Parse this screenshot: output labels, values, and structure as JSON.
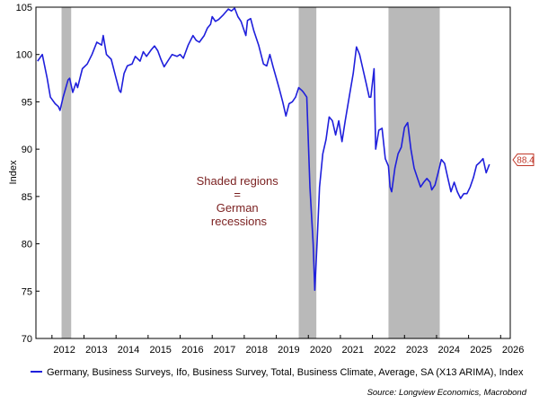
{
  "chart_data": {
    "type": "line",
    "title": "",
    "xlabel": "",
    "ylabel": "Index",
    "ylim": [
      70,
      105
    ],
    "xlim": [
      2011.5,
      2026.3
    ],
    "yticks": [
      70,
      75,
      80,
      85,
      90,
      95,
      100,
      105
    ],
    "xticks": [
      2012,
      2013,
      2014,
      2015,
      2016,
      2017,
      2018,
      2019,
      2020,
      2021,
      2022,
      2023,
      2024,
      2025,
      2026
    ],
    "grid": false,
    "recessions": [
      [
        2012.3,
        2012.6
      ],
      [
        2019.7,
        2020.25
      ],
      [
        2022.5,
        2024.1
      ]
    ],
    "annotation": [
      "Shaded regions",
      "=",
      "German",
      "recessions"
    ],
    "last_value_label": "88.4",
    "legend": "Germany, Business Surveys, Ifo, Business Survey, Total, Business Climate, Average, SA (X13 ARIMA), Index",
    "source": "Source: Longview Economics, Macrobond",
    "series_color": "#1f1fdc",
    "recession_color": "#b9b9b9",
    "series": [
      {
        "name": "Germany, Business Surveys, Ifo, Business Survey, Total, Business Climate, Average, SA (X13 ARIMA), Index",
        "points": [
          [
            2011.55,
            99.3
          ],
          [
            2011.7,
            100.0
          ],
          [
            2011.85,
            97.5
          ],
          [
            2011.95,
            95.5
          ],
          [
            2012.1,
            94.8
          ],
          [
            2012.2,
            94.5
          ],
          [
            2012.25,
            94.1
          ],
          [
            2012.35,
            95.5
          ],
          [
            2012.5,
            97.3
          ],
          [
            2012.55,
            97.5
          ],
          [
            2012.65,
            96.0
          ],
          [
            2012.75,
            97.0
          ],
          [
            2012.8,
            96.5
          ],
          [
            2012.95,
            98.5
          ],
          [
            2013.1,
            99.0
          ],
          [
            2013.25,
            100.0
          ],
          [
            2013.4,
            101.3
          ],
          [
            2013.55,
            101.0
          ],
          [
            2013.6,
            102.0
          ],
          [
            2013.7,
            100.0
          ],
          [
            2013.85,
            99.5
          ],
          [
            2014.0,
            97.5
          ],
          [
            2014.1,
            96.2
          ],
          [
            2014.15,
            96.0
          ],
          [
            2014.25,
            98.0
          ],
          [
            2014.35,
            98.8
          ],
          [
            2014.5,
            99.0
          ],
          [
            2014.6,
            99.8
          ],
          [
            2014.75,
            99.3
          ],
          [
            2014.85,
            100.3
          ],
          [
            2014.95,
            99.8
          ],
          [
            2015.1,
            100.5
          ],
          [
            2015.2,
            100.9
          ],
          [
            2015.3,
            100.4
          ],
          [
            2015.4,
            99.5
          ],
          [
            2015.5,
            98.7
          ],
          [
            2015.65,
            99.5
          ],
          [
            2015.75,
            100.0
          ],
          [
            2015.9,
            99.8
          ],
          [
            2016.0,
            100.0
          ],
          [
            2016.1,
            99.6
          ],
          [
            2016.25,
            101.0
          ],
          [
            2016.4,
            102.0
          ],
          [
            2016.5,
            101.5
          ],
          [
            2016.6,
            101.3
          ],
          [
            2016.75,
            102.0
          ],
          [
            2016.85,
            102.8
          ],
          [
            2016.95,
            103.2
          ],
          [
            2017.0,
            104.0
          ],
          [
            2017.1,
            103.5
          ],
          [
            2017.2,
            103.7
          ],
          [
            2017.35,
            104.2
          ],
          [
            2017.5,
            104.8
          ],
          [
            2017.6,
            104.6
          ],
          [
            2017.7,
            104.9
          ],
          [
            2017.8,
            104.0
          ],
          [
            2017.9,
            103.5
          ],
          [
            2018.0,
            102.5
          ],
          [
            2018.05,
            102.0
          ],
          [
            2018.1,
            103.6
          ],
          [
            2018.2,
            103.8
          ],
          [
            2018.3,
            102.5
          ],
          [
            2018.45,
            101.0
          ],
          [
            2018.6,
            99.0
          ],
          [
            2018.7,
            98.8
          ],
          [
            2018.8,
            100.0
          ],
          [
            2018.9,
            98.7
          ],
          [
            2019.0,
            97.5
          ],
          [
            2019.1,
            96.3
          ],
          [
            2019.2,
            95.0
          ],
          [
            2019.3,
            93.5
          ],
          [
            2019.4,
            94.8
          ],
          [
            2019.5,
            95.0
          ],
          [
            2019.6,
            95.5
          ],
          [
            2019.7,
            96.5
          ],
          [
            2019.8,
            96.2
          ],
          [
            2019.85,
            96.0
          ],
          [
            2019.95,
            95.5
          ],
          [
            2020.05,
            86.0
          ],
          [
            2020.15,
            80.0
          ],
          [
            2020.2,
            75.1
          ],
          [
            2020.27,
            80.0
          ],
          [
            2020.35,
            86.0
          ],
          [
            2020.45,
            89.5
          ],
          [
            2020.55,
            91.0
          ],
          [
            2020.65,
            93.4
          ],
          [
            2020.75,
            93.0
          ],
          [
            2020.85,
            91.5
          ],
          [
            2020.95,
            93.0
          ],
          [
            2021.05,
            90.8
          ],
          [
            2021.15,
            93.0
          ],
          [
            2021.3,
            96.0
          ],
          [
            2021.4,
            98.0
          ],
          [
            2021.5,
            100.8
          ],
          [
            2021.6,
            100.0
          ],
          [
            2021.7,
            98.5
          ],
          [
            2021.8,
            97.0
          ],
          [
            2021.9,
            95.5
          ],
          [
            2021.95,
            95.5
          ],
          [
            2022.05,
            98.5
          ],
          [
            2022.1,
            90.0
          ],
          [
            2022.2,
            92.0
          ],
          [
            2022.3,
            92.2
          ],
          [
            2022.4,
            89.0
          ],
          [
            2022.5,
            88.2
          ],
          [
            2022.55,
            86.0
          ],
          [
            2022.6,
            85.5
          ],
          [
            2022.7,
            88.0
          ],
          [
            2022.8,
            89.5
          ],
          [
            2022.9,
            90.2
          ],
          [
            2023.0,
            92.3
          ],
          [
            2023.1,
            92.8
          ],
          [
            2023.2,
            90.0
          ],
          [
            2023.3,
            88.0
          ],
          [
            2023.4,
            87.0
          ],
          [
            2023.5,
            86.0
          ],
          [
            2023.6,
            86.5
          ],
          [
            2023.7,
            86.9
          ],
          [
            2023.8,
            86.5
          ],
          [
            2023.85,
            85.7
          ],
          [
            2023.95,
            86.2
          ],
          [
            2024.05,
            87.5
          ],
          [
            2024.15,
            88.9
          ],
          [
            2024.25,
            88.5
          ],
          [
            2024.35,
            87.0
          ],
          [
            2024.45,
            85.5
          ],
          [
            2024.55,
            86.5
          ],
          [
            2024.65,
            85.5
          ],
          [
            2024.75,
            84.8
          ],
          [
            2024.85,
            85.3
          ],
          [
            2024.95,
            85.3
          ],
          [
            2025.05,
            86.0
          ],
          [
            2025.15,
            87.0
          ],
          [
            2025.25,
            88.3
          ],
          [
            2025.35,
            88.6
          ],
          [
            2025.45,
            89.0
          ],
          [
            2025.55,
            87.5
          ],
          [
            2025.65,
            88.4
          ]
        ]
      }
    ]
  }
}
